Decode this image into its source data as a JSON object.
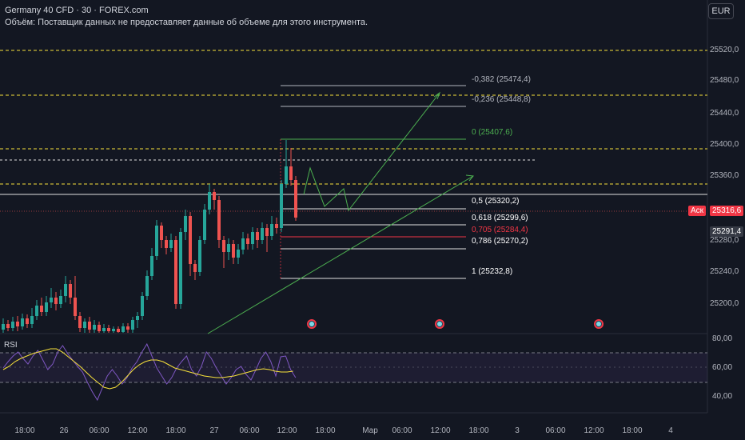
{
  "header": {
    "symbol_line": "Germany 40 CFD · 30 · FOREX.com",
    "volume_notice": "Объём: Поставщик данных не предоставляет данные об объеме для этого инструмента."
  },
  "currency_button": "EUR",
  "price_axis": [
    "25520,0",
    "25480,0",
    "25440,0",
    "25400,0",
    "25360,0",
    "25280,0",
    "25240,0",
    "25200,0"
  ],
  "price_tags": {
    "ask_label": "Аск",
    "ask_value": "25316,6",
    "last_value": "25291,4"
  },
  "fib_levels": [
    {
      "label": "-0,382 (25474,4)",
      "color": "#b2b5be"
    },
    {
      "label": "-0,236 (25448,8)",
      "color": "#b2b5be"
    },
    {
      "label": "0 (25407,6)",
      "color": "#4caf50"
    },
    {
      "label": "0,5 (25320,2)",
      "color": "#ffffff"
    },
    {
      "label": "0,618 (25299,6)",
      "color": "#ffffff"
    },
    {
      "label": "0,705 (25284,4)",
      "color": "#f23645"
    },
    {
      "label": "0,786 (25270,2)",
      "color": "#ffffff"
    },
    {
      "label": "1 (25232,8)",
      "color": "#ffffff"
    }
  ],
  "rsi": {
    "label": "RSI",
    "ticks": [
      "80,00",
      "60,00",
      "40,00"
    ]
  },
  "time_axis": [
    "18:00",
    "26",
    "06:00",
    "12:00",
    "18:00",
    "27",
    "06:00",
    "12:00",
    "18:00",
    "Мар",
    "06:00",
    "12:00",
    "18:00",
    "3",
    "06:00",
    "12:00",
    "18:00",
    "4"
  ],
  "colors": {
    "background": "#131722",
    "up_candle": "#26a69a",
    "down_candle": "#ef5350",
    "fib_green": "#4caf50",
    "fib_red": "#f23645",
    "rsi_line": "#7e57c2",
    "rsi_ma": "#f7e13a",
    "dashed_level": "#f7e13a"
  },
  "event_icons": [
    "event-icon",
    "event-icon",
    "event-icon"
  ]
}
